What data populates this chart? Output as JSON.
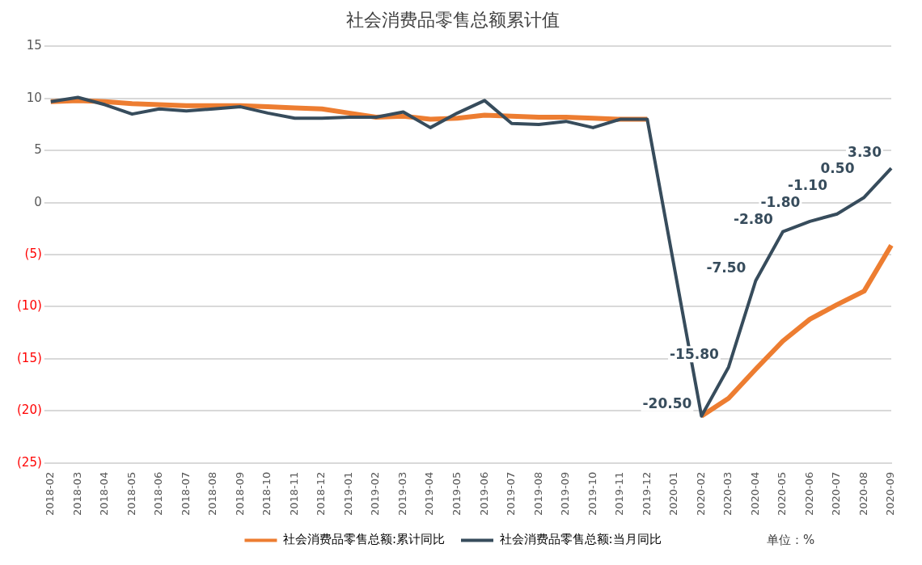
{
  "chart_data": {
    "type": "line",
    "title": "社会消费品零售总额累计值",
    "categories": [
      "2018-02",
      "2018-03",
      "2018-04",
      "2018-05",
      "2018-06",
      "2018-07",
      "2018-08",
      "2018-09",
      "2018-10",
      "2018-11",
      "2018-12",
      "2019-01",
      "2019-02",
      "2019-03",
      "2019-04",
      "2019-05",
      "2019-06",
      "2019-07",
      "2019-08",
      "2019-09",
      "2019-10",
      "2019-11",
      "2019-12",
      "2020-01",
      "2020-02",
      "2020-03",
      "2020-04",
      "2020-05",
      "2020-06",
      "2020-07",
      "2020-08",
      "2020-09"
    ],
    "series": [
      {
        "name": "社会消费品零售总额:累计同比",
        "color": "#ed7d31",
        "values": [
          9.7,
          9.8,
          9.7,
          9.5,
          9.4,
          9.3,
          9.3,
          9.3,
          9.2,
          9.1,
          9.0,
          8.6,
          8.2,
          8.3,
          8.0,
          8.1,
          8.4,
          8.3,
          8.2,
          8.2,
          8.1,
          8.0,
          8.0,
          null,
          -20.5,
          -18.8,
          -16.0,
          -13.3,
          -11.2,
          -9.8,
          -8.5,
          -4.1
        ]
      },
      {
        "name": "社会消费品零售总额:当月同比",
        "color": "#374c5c",
        "values": [
          9.7,
          10.1,
          9.4,
          8.5,
          9.0,
          8.8,
          9.0,
          9.2,
          8.6,
          8.1,
          8.1,
          8.2,
          8.2,
          8.7,
          7.2,
          8.6,
          9.8,
          7.6,
          7.5,
          7.8,
          7.2,
          8.0,
          8.0,
          null,
          -20.5,
          -15.8,
          -7.5,
          -2.8,
          -1.8,
          -1.1,
          0.5,
          3.3
        ],
        "value_labels": [
          null,
          null,
          null,
          null,
          null,
          null,
          null,
          null,
          null,
          null,
          null,
          null,
          null,
          null,
          null,
          null,
          null,
          null,
          null,
          null,
          null,
          null,
          null,
          null,
          "-20.50",
          "-15.80",
          "-7.50",
          "-2.80",
          "-1.80",
          "-1.10",
          "0.50",
          "3.30"
        ]
      }
    ],
    "ylim": [
      -25,
      15
    ],
    "yticks": [
      15,
      10,
      5,
      0,
      {
        "value": -5,
        "label": "(5)"
      },
      {
        "value": -10,
        "label": "(10)"
      },
      {
        "value": -15,
        "label": "(15)"
      },
      {
        "value": -20,
        "label": "(20)"
      },
      {
        "value": -25,
        "label": "(25)"
      }
    ],
    "grid": "y",
    "legend": "bottom",
    "marker": "none",
    "line_style": "solid",
    "annotations": [
      "单位：%"
    ]
  }
}
